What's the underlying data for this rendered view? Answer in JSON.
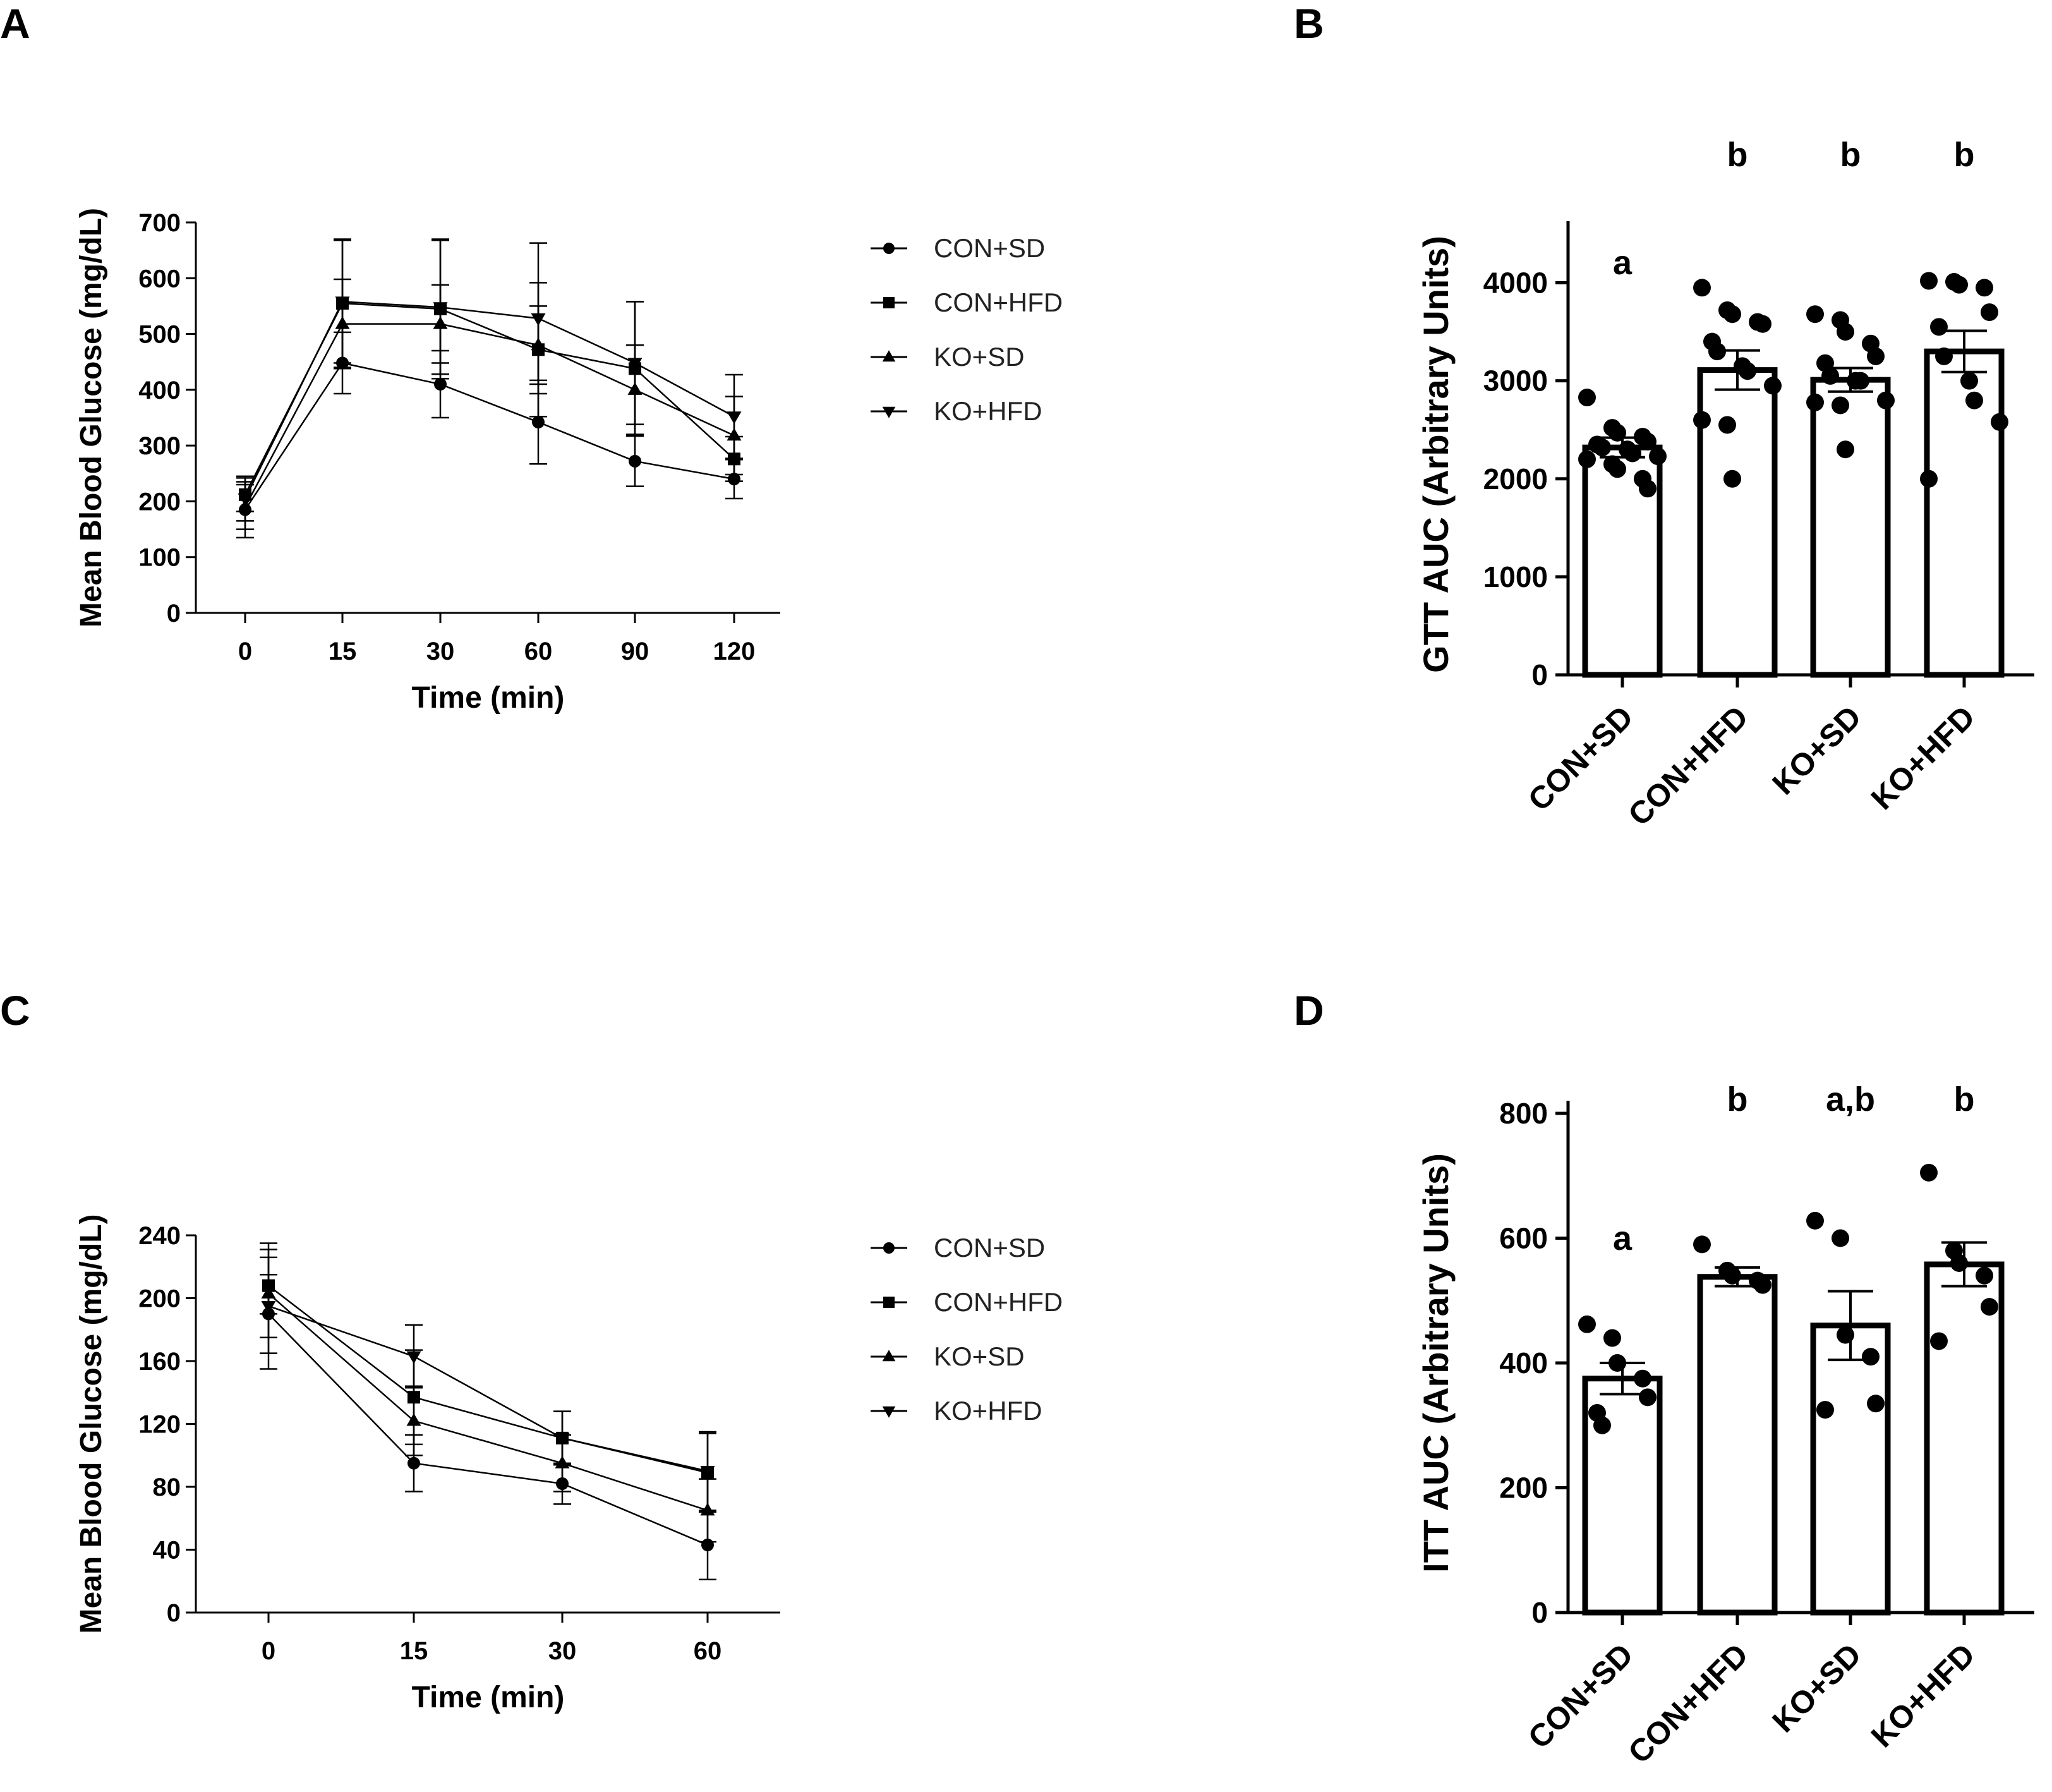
{
  "panels": [
    "A",
    "B",
    "C",
    "D"
  ],
  "legend_groups": [
    "CON+SD",
    "CON+HFD",
    "KO+SD",
    "KO+HFD"
  ],
  "chart_data": [
    {
      "id": "A",
      "type": "line",
      "xlabel": "Time (min)",
      "ylabel": "Mean Blood Glucose (mg/dL)",
      "categories": [
        "0",
        "15",
        "30",
        "60",
        "90",
        "120"
      ],
      "ylim": [
        0,
        700
      ],
      "yticks": [
        0,
        100,
        200,
        300,
        400,
        500,
        600,
        700
      ],
      "series": [
        {
          "name": "CON+SD",
          "marker": "circle",
          "values": [
            185,
            448,
            410,
            342,
            272,
            240
          ],
          "errors": [
            50,
            55,
            60,
            75,
            45,
            35
          ]
        },
        {
          "name": "CON+HFD",
          "marker": "square",
          "values": [
            212,
            555,
            545,
            472,
            438,
            276
          ],
          "errors": [
            30,
            115,
            125,
            120,
            120,
            40
          ]
        },
        {
          "name": "KO+SD",
          "marker": "triangle",
          "values": [
            190,
            518,
            518,
            480,
            400,
            318
          ],
          "errors": [
            40,
            80,
            70,
            70,
            80,
            70
          ]
        },
        {
          "name": "KO+HFD",
          "marker": "triangle-down",
          "values": [
            205,
            558,
            548,
            528,
            448,
            352
          ],
          "errors": [
            40,
            110,
            120,
            135,
            110,
            75
          ]
        }
      ]
    },
    {
      "id": "B",
      "type": "bar",
      "ylabel": "GTT AUC (Arbitrary Units)",
      "categories": [
        "CON+SD",
        "CON+HFD",
        "KO+SD",
        "KO+HFD"
      ],
      "values": [
        2320,
        3110,
        3010,
        3300
      ],
      "errors": [
        100,
        200,
        120,
        210
      ],
      "significance": [
        "a",
        "b",
        "b",
        "b"
      ],
      "ylim": [
        0,
        4500
      ],
      "yticks": [
        0,
        1000,
        2000,
        3000,
        4000
      ],
      "points": [
        [
          2830,
          2520,
          2470,
          2430,
          2380,
          2350,
          2320,
          2300,
          2260,
          2230,
          2200,
          2150,
          2100,
          2000,
          1900
        ],
        [
          3950,
          3720,
          3680,
          3600,
          3580,
          3400,
          3300,
          3150,
          3100,
          2950,
          2600,
          2550,
          2000
        ],
        [
          3680,
          3620,
          3500,
          3380,
          3250,
          3180,
          3050,
          3000,
          3000,
          2800,
          2780,
          2750,
          2300
        ],
        [
          4020,
          4010,
          3980,
          3950,
          3700,
          3550,
          3250,
          3000,
          2800,
          2580,
          2000
        ]
      ]
    },
    {
      "id": "C",
      "type": "line",
      "xlabel": "Time (min)",
      "ylabel": "Mean Blood Glucose (mg/dL)",
      "categories": [
        "0",
        "15",
        "30",
        "60"
      ],
      "ylim": [
        0,
        240
      ],
      "yticks": [
        0,
        40,
        80,
        120,
        160,
        200,
        240
      ],
      "series": [
        {
          "name": "CON+SD",
          "marker": "circle",
          "values": [
            190,
            95,
            82,
            43
          ],
          "errors": [
            25,
            18,
            13,
            22
          ]
        },
        {
          "name": "CON+HFD",
          "marker": "square",
          "values": [
            208,
            137,
            111,
            89
          ],
          "errors": [
            18,
            30,
            17,
            25
          ]
        },
        {
          "name": "KO+SD",
          "marker": "triangle",
          "values": [
            203,
            122,
            95,
            65
          ],
          "errors": [
            28,
            22,
            18,
            20
          ]
        },
        {
          "name": "KO+HFD",
          "marker": "triangle-down",
          "values": [
            195,
            163,
            111,
            90
          ],
          "errors": [
            40,
            20,
            17,
            25
          ]
        }
      ]
    },
    {
      "id": "D",
      "type": "bar",
      "ylabel": "ITT AUC (Arbitrary Units)",
      "categories": [
        "CON+SD",
        "CON+HFD",
        "KO+SD",
        "KO+HFD"
      ],
      "values": [
        375,
        538,
        460,
        558
      ],
      "errors": [
        25,
        15,
        55,
        35
      ],
      "significance": [
        "a",
        "b",
        "a,b",
        "b"
      ],
      "ylim": [
        0,
        800
      ],
      "yticks": [
        0,
        200,
        400,
        600,
        800
      ],
      "points": [
        [
          462,
          440,
          400,
          375,
          345,
          320,
          300
        ],
        [
          590,
          548,
          540,
          532,
          525
        ],
        [
          628,
          600,
          445,
          410,
          335,
          325
        ],
        [
          705,
          580,
          560,
          540,
          490,
          435
        ]
      ]
    }
  ]
}
